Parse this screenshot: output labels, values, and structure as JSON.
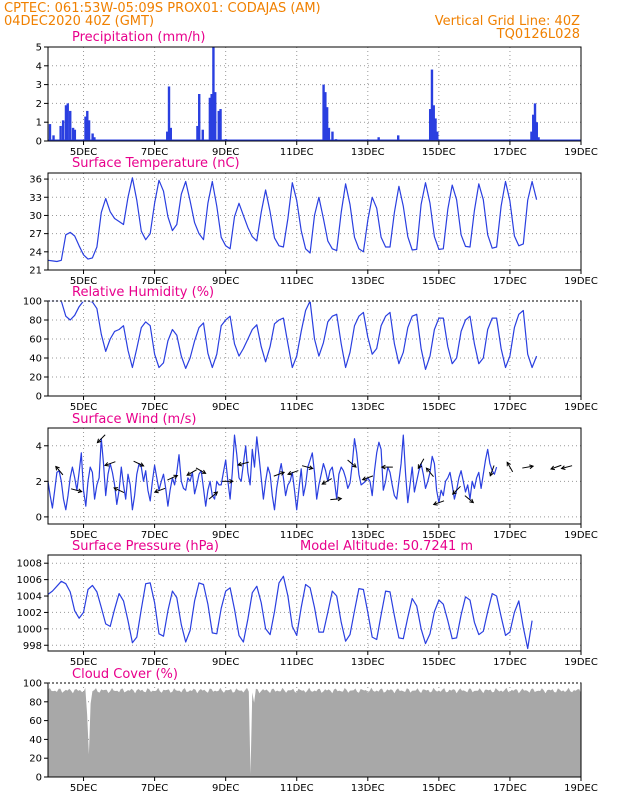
{
  "header": {
    "line1": "CPTEC:   061:53W-05:09S   PROX01: CODAJAS (AM)",
    "line2_left": "04DEC2020 40Z (GMT)",
    "line2_right": "Vertical Grid Line: 40Z",
    "line3_right": "TQ0126L028"
  },
  "colors": {
    "header": "#f08000",
    "title": "#e8008c",
    "series": "#2a3fe0",
    "cloud": "#a8a8a8",
    "grid": "#999999"
  },
  "x_ticks": [
    "5DEC",
    "7DEC",
    "9DEC",
    "11DEC",
    "13DEC",
    "15DEC",
    "17DEC",
    "19DEC"
  ],
  "x_tick_days": [
    5,
    7,
    9,
    11,
    13,
    15,
    17,
    19
  ],
  "chart_data": [
    {
      "id": "precip",
      "type": "bar",
      "title": "Precipitation (mm/h)",
      "ylim": [
        0,
        5
      ],
      "yticks": [
        0,
        1,
        2,
        3,
        4,
        5
      ],
      "x_unit": "day of December 2020 (fractional)",
      "x": [
        4.05,
        4.15,
        4.35,
        4.42,
        4.5,
        4.55,
        4.62,
        4.7,
        4.75,
        5.05,
        5.1,
        5.15,
        5.25,
        5.3,
        7.35,
        7.4,
        7.45,
        8.2,
        8.25,
        8.35,
        8.55,
        8.6,
        8.65,
        8.7,
        8.8,
        8.85,
        9.0,
        11.75,
        11.8,
        11.85,
        11.9,
        12.0,
        12.1,
        13.3,
        13.85,
        14.75,
        14.8,
        14.85,
        14.9,
        14.95,
        17.6,
        17.65,
        17.7,
        17.75,
        17.8
      ],
      "values": [
        0.9,
        0.3,
        0.8,
        1.1,
        1.9,
        2.0,
        1.6,
        0.7,
        0.6,
        1.3,
        1.6,
        1.1,
        0.4,
        0.2,
        0.5,
        2.9,
        0.7,
        0.8,
        2.5,
        0.6,
        2.3,
        2.5,
        5.0,
        2.6,
        1.6,
        1.7,
        0.1,
        3.0,
        2.6,
        1.8,
        0.7,
        0.5,
        0.1,
        0.2,
        0.3,
        1.7,
        3.8,
        1.9,
        1.2,
        0.5,
        0.5,
        1.4,
        2.0,
        1.0,
        0.2
      ]
    },
    {
      "id": "temp",
      "type": "line",
      "title": "Surface Temperature (nC)",
      "ylim": [
        21,
        37
      ],
      "yticks": [
        21,
        24,
        27,
        30,
        33,
        36
      ],
      "x_start": 4.0,
      "x_step": 0.125,
      "values": [
        22.6,
        22.5,
        22.4,
        22.6,
        26.8,
        27.2,
        26.6,
        25.0,
        23.5,
        22.8,
        23.0,
        24.8,
        30.5,
        32.8,
        30.6,
        29.5,
        29.0,
        28.5,
        33.0,
        36.2,
        32.5,
        27.4,
        26.0,
        27.0,
        32.0,
        35.8,
        34.0,
        29.8,
        27.5,
        28.5,
        33.5,
        35.6,
        32.4,
        28.8,
        27.0,
        26.0,
        32.0,
        35.6,
        31.5,
        26.4,
        25.0,
        24.5,
        29.8,
        32.0,
        30.0,
        28.0,
        26.5,
        25.8,
        30.5,
        34.2,
        30.6,
        26.3,
        25.0,
        24.8,
        29.5,
        35.4,
        32.5,
        27.5,
        24.5,
        23.8,
        30.0,
        33.0,
        29.5,
        25.8,
        24.5,
        24.2,
        30.5,
        35.2,
        31.8,
        26.4,
        24.5,
        24.0,
        29.2,
        33.0,
        31.2,
        26.4,
        24.8,
        24.8,
        30.5,
        34.8,
        31.5,
        26.5,
        24.3,
        24.4,
        31.8,
        35.4,
        32.0,
        26.5,
        24.4,
        24.5,
        31.0,
        35.0,
        32.6,
        26.8,
        24.9,
        24.8,
        30.8,
        35.2,
        32.6,
        26.8,
        24.6,
        24.8,
        31.5,
        35.6,
        32.4,
        26.6,
        25.0,
        25.3,
        32.5,
        35.6,
        32.6
      ]
    },
    {
      "id": "rh",
      "type": "line",
      "title": "Relative Humidity (%)",
      "ylim": [
        0,
        100
      ],
      "yticks": [
        0,
        20,
        40,
        60,
        80,
        100
      ],
      "x_start": 4.0,
      "x_step": 0.125,
      "values": [
        100,
        100,
        100,
        100,
        84,
        80,
        85,
        94,
        100,
        100,
        99,
        92,
        65,
        47,
        60,
        68,
        70,
        74,
        48,
        30,
        50,
        72,
        78,
        74,
        44,
        30,
        35,
        58,
        70,
        64,
        42,
        29,
        40,
        58,
        72,
        77,
        45,
        30,
        44,
        74,
        80,
        84,
        55,
        42,
        50,
        60,
        70,
        75,
        52,
        36,
        52,
        76,
        80,
        82,
        55,
        30,
        42,
        68,
        90,
        100,
        60,
        42,
        56,
        78,
        84,
        86,
        55,
        30,
        46,
        74,
        84,
        88,
        62,
        44,
        50,
        74,
        84,
        88,
        55,
        34,
        46,
        72,
        84,
        86,
        50,
        28,
        42,
        70,
        82,
        82,
        52,
        34,
        40,
        68,
        80,
        84,
        55,
        34,
        40,
        70,
        82,
        82,
        50,
        30,
        42,
        72,
        86,
        90,
        44,
        30,
        42
      ]
    },
    {
      "id": "wind",
      "type": "line",
      "title": "Surface Wind (m/s)",
      "ylim": [
        -0.4,
        5
      ],
      "yticks": [
        0,
        2,
        4
      ],
      "x_start": 4.0,
      "x_step": 0.0625,
      "values": [
        2.0,
        1.2,
        0.5,
        1.5,
        2.5,
        2.6,
        2.0,
        1.0,
        0.4,
        1.2,
        2.2,
        2.8,
        2.2,
        1.5,
        2.5,
        3.6,
        1.5,
        0.6,
        2.0,
        2.8,
        2.5,
        1.0,
        1.8,
        2.2,
        4.4,
        3.0,
        1.2,
        2.4,
        3.0,
        2.5,
        1.8,
        0.7,
        1.5,
        2.8,
        1.8,
        1.0,
        2.4,
        1.8,
        0.4,
        1.2,
        2.4,
        3.0,
        2.8,
        2.0,
        2.6,
        1.5,
        0.9,
        2.0,
        2.9,
        2.2,
        1.5,
        2.0,
        2.4,
        1.6,
        0.6,
        1.5,
        2.2,
        1.8,
        2.5,
        3.5,
        2.0,
        1.6,
        1.5,
        2.2,
        2.0,
        2.5,
        1.3,
        1.8,
        2.4,
        2.6,
        1.6,
        0.6,
        1.5,
        2.0,
        1.2,
        1.0,
        2.0,
        1.8,
        1.8,
        2.5,
        3.2,
        2.0,
        1.0,
        2.5,
        4.6,
        3.5,
        2.2,
        2.0,
        3.0,
        4.0,
        2.5,
        1.8,
        3.8,
        2.8,
        4.5,
        3.4,
        2.2,
        1.0,
        2.0,
        2.8,
        2.4,
        1.2,
        0.4,
        1.6,
        2.4,
        3.0,
        2.2,
        1.2,
        1.8,
        2.0,
        2.5,
        1.5,
        0.4,
        1.6,
        2.7,
        1.2,
        1.8,
        2.8,
        3.2,
        3.6,
        2.5,
        1.0,
        1.8,
        2.4,
        3.0,
        2.6,
        2.0,
        2.6,
        2.8,
        2.0,
        1.0,
        2.4,
        2.8,
        2.6,
        2.2,
        1.6,
        1.9,
        3.0,
        4.4,
        3.6,
        2.4,
        1.8,
        1.9,
        2.0,
        2.2,
        2.0,
        1.2,
        2.6,
        3.6,
        4.2,
        3.8,
        1.5,
        2.0,
        2.8,
        2.5,
        1.8,
        1.2,
        1.0,
        2.0,
        3.0,
        4.6,
        2.4,
        0.8,
        1.8,
        2.8,
        1.4,
        2.0,
        2.6,
        3.0,
        2.4,
        1.6,
        2.0,
        2.5,
        3.4,
        3.0,
        1.5,
        0.8,
        1.5,
        1.2,
        2.0,
        2.2,
        2.5,
        1.8,
        1.0,
        1.5,
        2.2,
        2.6,
        2.0,
        1.4,
        1.8,
        1.0,
        2.0,
        1.6,
        2.2,
        2.5,
        1.6,
        2.4,
        3.2,
        3.8,
        3.0,
        2.6,
        2.4,
        2.8
      ]
    },
    {
      "id": "pres",
      "type": "line",
      "title": "Surface Pressure (hPa)",
      "annotation": "Model Altitude: 50.7241 m",
      "ylim": [
        997.3,
        1009.0
      ],
      "yticks": [
        998,
        1000,
        1002,
        1004,
        1006,
        1008
      ],
      "x_start": 4.0,
      "x_step": 0.125,
      "values": [
        1004.2,
        1004.6,
        1005.2,
        1005.8,
        1005.5,
        1004.5,
        1002.2,
        1001.3,
        1002.0,
        1004.8,
        1005.3,
        1004.5,
        1002.6,
        1000.6,
        1000.3,
        1002.4,
        1004.3,
        1003.4,
        1001.0,
        998.3,
        999.0,
        1002.4,
        1005.5,
        1005.6,
        1003.2,
        999.4,
        999.1,
        1002.2,
        1004.6,
        1003.8,
        1000.5,
        998.4,
        999.8,
        1003.4,
        1005.6,
        1005.4,
        1003.0,
        999.5,
        999.4,
        1002.5,
        1004.6,
        1005.0,
        1002.4,
        999.2,
        998.4,
        1001.2,
        1004.4,
        1005.2,
        1003.2,
        1000.0,
        999.3,
        1002.1,
        1005.6,
        1006.4,
        1004.0,
        1000.3,
        999.2,
        1002.6,
        1005.4,
        1005.0,
        1002.6,
        999.6,
        999.6,
        1002.0,
        1004.6,
        1004.0,
        1000.8,
        998.5,
        999.3,
        1002.2,
        1004.9,
        1004.8,
        1002.0,
        999.0,
        998.7,
        1001.7,
        1004.6,
        1004.5,
        1001.6,
        998.9,
        998.8,
        1001.4,
        1003.7,
        1002.8,
        1000.0,
        998.2,
        999.4,
        1002.1,
        1003.5,
        1003.0,
        1001.0,
        998.8,
        998.9,
        1001.7,
        1003.9,
        1003.5,
        1000.8,
        999.3,
        999.7,
        1002.1,
        1004.3,
        1004.0,
        1001.5,
        999.2,
        999.6,
        1002.0,
        1003.4,
        1000.2,
        997.6,
        1001.0
      ]
    },
    {
      "id": "cloud",
      "type": "area",
      "title": "Cloud Cover (%)",
      "ylim": [
        0,
        100
      ],
      "yticks": [
        0,
        20,
        40,
        60,
        80,
        100
      ],
      "x_start": 4.0,
      "x_step": 0.05,
      "base": 92,
      "amp": 3,
      "overrides": [
        [
          4.0,
          93
        ],
        [
          5.1,
          67
        ],
        [
          5.15,
          24
        ],
        [
          5.2,
          78
        ],
        [
          9.7,
          3
        ],
        [
          9.75,
          90
        ],
        [
          9.8,
          79
        ]
      ]
    }
  ],
  "wind_arrows": [
    {
      "x": 4.32,
      "dir": 130
    },
    {
      "x": 4.8,
      "dir": -15
    },
    {
      "x": 5.5,
      "dir": 225
    },
    {
      "x": 5.75,
      "dir": 200
    },
    {
      "x": 6.0,
      "dir": 155
    },
    {
      "x": 6.55,
      "dir": -25
    },
    {
      "x": 7.15,
      "dir": 200
    },
    {
      "x": 7.5,
      "dir": 25
    },
    {
      "x": 8.05,
      "dir": 210
    },
    {
      "x": 8.3,
      "dir": -30
    },
    {
      "x": 8.65,
      "dir": 40
    },
    {
      "x": 9.05,
      "dir": 0
    },
    {
      "x": 9.5,
      "dir": 195
    },
    {
      "x": 10.5,
      "dir": 20
    },
    {
      "x": 10.9,
      "dir": 200
    },
    {
      "x": 11.3,
      "dir": -15
    },
    {
      "x": 11.85,
      "dir": 210
    },
    {
      "x": 12.1,
      "dir": 5
    },
    {
      "x": 12.55,
      "dir": -40
    },
    {
      "x": 13.0,
      "dir": 200
    },
    {
      "x": 13.55,
      "dir": 180
    },
    {
      "x": 14.5,
      "dir": 240
    },
    {
      "x": 14.75,
      "dir": 130
    },
    {
      "x": 15.0,
      "dir": 200
    },
    {
      "x": 15.5,
      "dir": 225
    },
    {
      "x": 15.85,
      "dir": -40
    },
    {
      "x": 16.5,
      "dir": 250
    },
    {
      "x": 17.0,
      "dir": 120
    },
    {
      "x": 17.5,
      "dir": 10
    },
    {
      "x": 18.3,
      "dir": 200
    },
    {
      "x": 18.6,
      "dir": 195
    }
  ]
}
